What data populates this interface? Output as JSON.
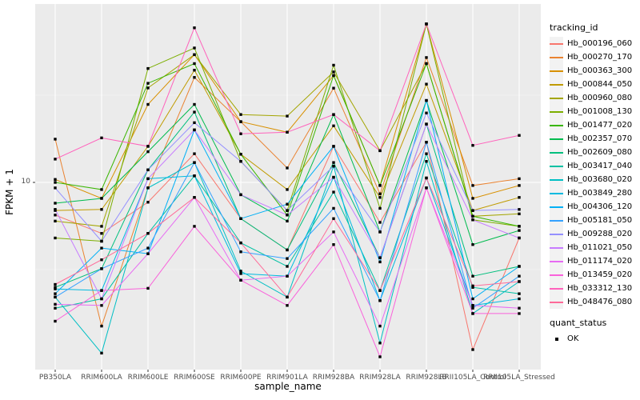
{
  "figure": {
    "y_axis": {
      "title": "FPKM + 1",
      "tick_label": "10"
    },
    "x_axis": {
      "title": "sample_name"
    }
  },
  "legend": {
    "tracking_title": "tracking_id",
    "quant_title": "quant_status",
    "quant_ok_label": "OK"
  },
  "colors": {
    "panel_bg": "#ebebeb",
    "grid": "#ffffff",
    "key_bg": "#f2f2f2",
    "axis_text": "#4d4d4d",
    "tick_mark": "#333333",
    "point": "#000000"
  },
  "chart_data": {
    "type": "line",
    "title": "",
    "xlabel": "sample_name",
    "ylabel": "FPKM + 1",
    "y_scale": "log10",
    "ylim": [
      1,
      100
    ],
    "y_major_ticks": [
      10
    ],
    "y_minor_ticks": [
      3.1623,
      31.623
    ],
    "grid": true,
    "legend_position": "right",
    "point_marker": {
      "label": "OK",
      "color": "#000000",
      "shape": "square"
    },
    "categories": [
      "PB350LA",
      "RRIM600LA",
      "RRIM600LE",
      "RRIM600SE",
      "RRIM600PE",
      "RRIM901LA",
      "RRIM928BA",
      "RRIM928LA",
      "RRIM928LB",
      "RRII105LA_Control",
      "RRII105LA_Stressed"
    ],
    "series": [
      {
        "name": "Hb_000196_060",
        "color": "#F8766D",
        "values": [
          6.5,
          5.1,
          7.7,
          14.6,
          6.2,
          4.1,
          16.1,
          5.9,
          17.0,
          1.1,
          4.8
        ]
      },
      {
        "name": "Hb_000270_170",
        "color": "#EA8331",
        "values": [
          17.7,
          1.5,
          9.3,
          40,
          22.3,
          12.1,
          34.7,
          8.6,
          52,
          9.6,
          10.5
        ]
      },
      {
        "name": "Hb_000363_300",
        "color": "#D89000",
        "values": [
          10.4,
          8.1,
          28,
          54,
          22.3,
          19.4,
          41,
          9.6,
          81,
          8.1,
          9.6
        ]
      },
      {
        "name": "Hb_000844_050",
        "color": "#C09B00",
        "values": [
          6.9,
          7.0,
          16.1,
          44,
          14.5,
          9.1,
          21.1,
          8.2,
          36.6,
          6.9,
          8.2
        ]
      },
      {
        "name": "Hb_000960_080",
        "color": "#A3A500",
        "values": [
          6.0,
          5.6,
          34.8,
          54,
          24.5,
          24,
          43,
          15.2,
          48,
          6.4,
          6.6
        ]
      },
      {
        "name": "Hb_001008_130",
        "color": "#7CAE00",
        "values": [
          4.8,
          4.6,
          45,
          59,
          13.2,
          6.9,
          47,
          7.1,
          81,
          6.1,
          5.6
        ]
      },
      {
        "name": "Hb_001477_020",
        "color": "#39B600",
        "values": [
          10.0,
          9.1,
          37,
          48,
          14.5,
          6.5,
          41,
          9.6,
          48,
          6.4,
          5.6
        ]
      },
      {
        "name": "Hb_002357_070",
        "color": "#00BB4E",
        "values": [
          7.6,
          8.1,
          15.0,
          28,
          8.5,
          6.0,
          24.5,
          5.2,
          29.5,
          4.4,
          5.3
        ]
      },
      {
        "name": "Hb_002609_080",
        "color": "#00BF7D",
        "values": [
          2.5,
          3.2,
          11.8,
          25.3,
          6.2,
          4.1,
          13.0,
          3.7,
          21.6,
          2.9,
          3.3
        ]
      },
      {
        "name": "Hb_003417_040",
        "color": "#00C1A3",
        "values": [
          1.9,
          2.15,
          5.1,
          10.9,
          4.5,
          3.3,
          8.8,
          2.4,
          14.6,
          2.5,
          2.3
        ]
      },
      {
        "name": "Hb_003680_020",
        "color": "#00BFC4",
        "values": [
          2.2,
          1.05,
          9.3,
          13.0,
          3.1,
          2.2,
          12.4,
          1.2,
          13.2,
          1.77,
          2.7
        ]
      },
      {
        "name": "Hb_003849_280",
        "color": "#00BAE0",
        "values": [
          2.45,
          2.4,
          10.5,
          10.9,
          3.0,
          2.9,
          10.7,
          2.1,
          10.6,
          1.97,
          2.15
        ]
      },
      {
        "name": "Hb_004306_120",
        "color": "#00B0F6",
        "values": [
          2.3,
          4.2,
          3.9,
          20,
          6.2,
          7.5,
          16.1,
          3.5,
          29.5,
          2.15,
          3.3
        ]
      },
      {
        "name": "Hb_005181_050",
        "color": "#35A2FF",
        "values": [
          2.2,
          3.2,
          4.2,
          13.0,
          4.0,
          3.66,
          7.1,
          2.1,
          17.0,
          1.9,
          2.9
        ]
      },
      {
        "name": "Hb_009288_020",
        "color": "#9590FF",
        "values": [
          9.3,
          4.6,
          11.8,
          22,
          13.2,
          6.9,
          12.4,
          5.2,
          25,
          6.9,
          7.0
        ]
      },
      {
        "name": "Hb_011021_050",
        "color": "#C77CFF",
        "values": [
          7.0,
          2.15,
          10.5,
          20,
          8.5,
          6.5,
          10.7,
          3.7,
          21.6,
          6.1,
          4.8
        ]
      },
      {
        "name": "Hb_011174_020",
        "color": "#E76BF3",
        "values": [
          2.0,
          1.97,
          3.9,
          8.2,
          2.75,
          2.9,
          5.2,
          1.5,
          9.3,
          1.97,
          1.9
        ]
      },
      {
        "name": "Hb_013459_020",
        "color": "#FA62DB",
        "values": [
          1.6,
          2.4,
          2.47,
          5.6,
          2.75,
          1.97,
          4.4,
          1.0,
          9.3,
          1.77,
          1.77
        ]
      },
      {
        "name": "Hb_033312_130",
        "color": "#FF62BC",
        "values": [
          13.6,
          18.0,
          16.1,
          77,
          19.0,
          19.4,
          24.5,
          15.2,
          81,
          16.3,
          18.6
        ]
      },
      {
        "name": "Hb_048476_080",
        "color": "#FF6A98",
        "values": [
          2.6,
          3.6,
          5.1,
          8.2,
          4.5,
          2.2,
          6.2,
          2.4,
          10.6,
          2.55,
          2.7
        ]
      }
    ]
  }
}
